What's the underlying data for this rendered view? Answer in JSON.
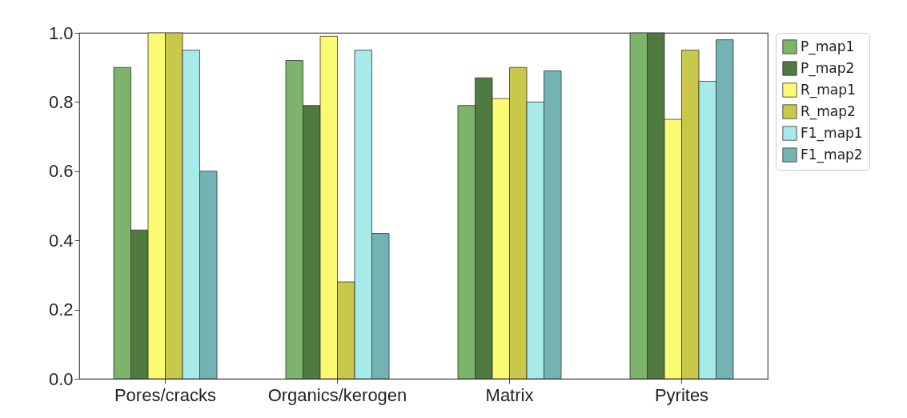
{
  "chart_data": {
    "type": "bar",
    "categories": [
      "Pores/cracks",
      "Organics/kerogen",
      "Matrix",
      "Pyrites"
    ],
    "series": [
      {
        "name": "P_map1",
        "color": "#7db36a",
        "values": [
          0.9,
          0.92,
          0.79,
          1.0
        ]
      },
      {
        "name": "P_map2",
        "color": "#4f7a40",
        "values": [
          0.43,
          0.79,
          0.87,
          1.0
        ]
      },
      {
        "name": "R_map1",
        "color": "#fbfb73",
        "values": [
          1.0,
          0.99,
          0.81,
          0.75
        ]
      },
      {
        "name": "R_map2",
        "color": "#c9c84a",
        "values": [
          1.0,
          0.28,
          0.9,
          0.95
        ]
      },
      {
        "name": "F1_map1",
        "color": "#a6eaea",
        "values": [
          0.95,
          0.95,
          0.8,
          0.86
        ]
      },
      {
        "name": "F1_map2",
        "color": "#74b3b3",
        "values": [
          0.6,
          0.42,
          0.89,
          0.98
        ]
      }
    ],
    "ylim": [
      0,
      1.0
    ],
    "yticks": [
      {
        "value": 0,
        "label": "0.0"
      },
      0.2,
      0.4,
      0.6,
      0.8,
      {
        "value": 1.0,
        "label": "1.0"
      }
    ],
    "grid": false,
    "legend": "top right"
  }
}
